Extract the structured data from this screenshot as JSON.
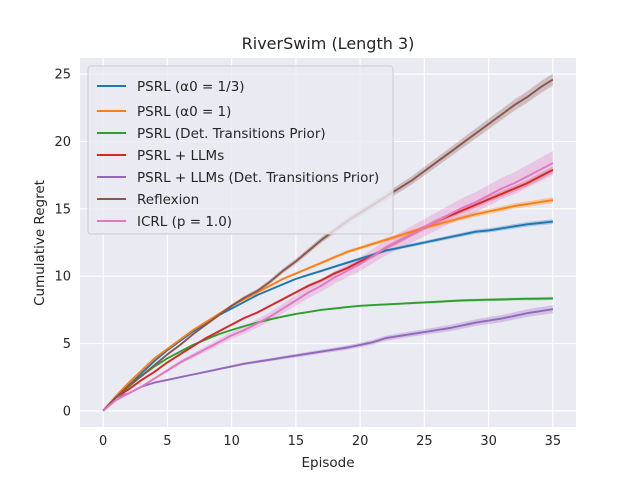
{
  "chart_data": {
    "type": "line",
    "title": "RiverSwim (Length 3)",
    "xlabel": "Episode",
    "ylabel": "Cumulative Regret",
    "xlim": [
      -1.8,
      36.8
    ],
    "ylim": [
      -1.2,
      26.2
    ],
    "xticks": [
      0,
      5,
      10,
      15,
      20,
      25,
      30,
      35
    ],
    "yticks": [
      0,
      5,
      10,
      15,
      20,
      25
    ],
    "xtick_labels": [
      "0",
      "5",
      "10",
      "15",
      "20",
      "25",
      "30",
      "35"
    ],
    "ytick_labels": [
      "0",
      "5",
      "10",
      "15",
      "20",
      "25"
    ],
    "grid": true,
    "legend_position": "top-left",
    "x": [
      0,
      1,
      2,
      3,
      4,
      5,
      6,
      7,
      8,
      9,
      10,
      11,
      12,
      13,
      14,
      15,
      16,
      17,
      18,
      19,
      20,
      21,
      22,
      23,
      24,
      25,
      26,
      27,
      28,
      29,
      30,
      31,
      32,
      33,
      34,
      35
    ],
    "series": [
      {
        "name": "PSRL (α0 = 1/3)",
        "color": "#1f77b4",
        "values": [
          0,
          1.0,
          1.9,
          2.8,
          3.7,
          4.5,
          5.2,
          5.9,
          6.5,
          7.1,
          7.6,
          8.1,
          8.6,
          9.0,
          9.4,
          9.8,
          10.1,
          10.4,
          10.7,
          11.0,
          11.3,
          11.6,
          11.9,
          12.1,
          12.3,
          12.5,
          12.7,
          12.9,
          13.1,
          13.3,
          13.4,
          13.55,
          13.7,
          13.85,
          13.95,
          14.05
        ],
        "band": 0.18
      },
      {
        "name": "PSRL (α0 = 1)",
        "color": "#ff7f0e",
        "values": [
          0,
          1.1,
          2.1,
          3.0,
          3.9,
          4.6,
          5.3,
          6.0,
          6.6,
          7.2,
          7.8,
          8.3,
          8.8,
          9.3,
          9.8,
          10.2,
          10.6,
          11.0,
          11.4,
          11.8,
          12.1,
          12.4,
          12.7,
          13.0,
          13.3,
          13.6,
          13.85,
          14.1,
          14.35,
          14.6,
          14.8,
          15.0,
          15.2,
          15.35,
          15.5,
          15.65
        ],
        "band": 0.22
      },
      {
        "name": "PSRL (Det. Transitions Prior)",
        "color": "#2ca02c",
        "values": [
          0,
          1.0,
          1.8,
          2.6,
          3.3,
          3.9,
          4.4,
          4.9,
          5.3,
          5.7,
          6.0,
          6.3,
          6.55,
          6.8,
          7.0,
          7.2,
          7.35,
          7.5,
          7.6,
          7.7,
          7.8,
          7.85,
          7.9,
          7.95,
          8.0,
          8.05,
          8.1,
          8.15,
          8.2,
          8.22,
          8.25,
          8.27,
          8.3,
          8.32,
          8.33,
          8.35
        ],
        "band": 0.12
      },
      {
        "name": "PSRL + LLMs",
        "color": "#d62728",
        "values": [
          0,
          1.0,
          1.6,
          2.3,
          2.9,
          3.6,
          4.2,
          4.8,
          5.4,
          5.9,
          6.4,
          6.9,
          7.3,
          7.8,
          8.3,
          8.8,
          9.3,
          9.7,
          10.2,
          10.6,
          11.1,
          11.5,
          12.1,
          12.6,
          13.1,
          13.6,
          14.1,
          14.5,
          14.9,
          15.3,
          15.7,
          16.1,
          16.5,
          16.9,
          17.4,
          17.9
        ],
        "band": 0.25
      },
      {
        "name": "PSRL + LLMs (Det. Transitions Prior)",
        "color": "#9467bd",
        "values": [
          0,
          1.0,
          1.3,
          1.8,
          2.1,
          2.3,
          2.5,
          2.7,
          2.9,
          3.1,
          3.3,
          3.5,
          3.65,
          3.8,
          3.95,
          4.1,
          4.25,
          4.4,
          4.55,
          4.7,
          4.9,
          5.1,
          5.4,
          5.55,
          5.7,
          5.85,
          6.0,
          6.15,
          6.35,
          6.55,
          6.7,
          6.85,
          7.05,
          7.25,
          7.4,
          7.55
        ],
        "band": 0.3
      },
      {
        "name": "Reflexion",
        "color": "#8c564b",
        "values": [
          0,
          1.0,
          1.9,
          2.6,
          3.4,
          4.2,
          4.9,
          5.7,
          6.4,
          7.1,
          7.8,
          8.4,
          8.9,
          9.6,
          10.4,
          11.1,
          11.9,
          12.7,
          13.4,
          14.1,
          14.7,
          15.3,
          15.9,
          16.5,
          17.1,
          17.8,
          18.5,
          19.2,
          19.9,
          20.6,
          21.3,
          22.0,
          22.7,
          23.3,
          24.0,
          24.6
        ],
        "band": 0.45
      },
      {
        "name": "ICRL (p = 1.0)",
        "color": "#e377c2",
        "values": [
          0,
          0.8,
          1.3,
          1.8,
          2.4,
          3.0,
          3.6,
          4.1,
          4.6,
          5.1,
          5.6,
          6.0,
          6.5,
          7.0,
          7.6,
          8.2,
          8.8,
          9.3,
          9.9,
          10.4,
          10.9,
          11.5,
          12.1,
          12.6,
          13.1,
          13.6,
          14.1,
          14.6,
          15.1,
          15.5,
          16.0,
          16.5,
          16.9,
          17.4,
          17.9,
          18.4
        ],
        "band": 0.9
      }
    ]
  }
}
